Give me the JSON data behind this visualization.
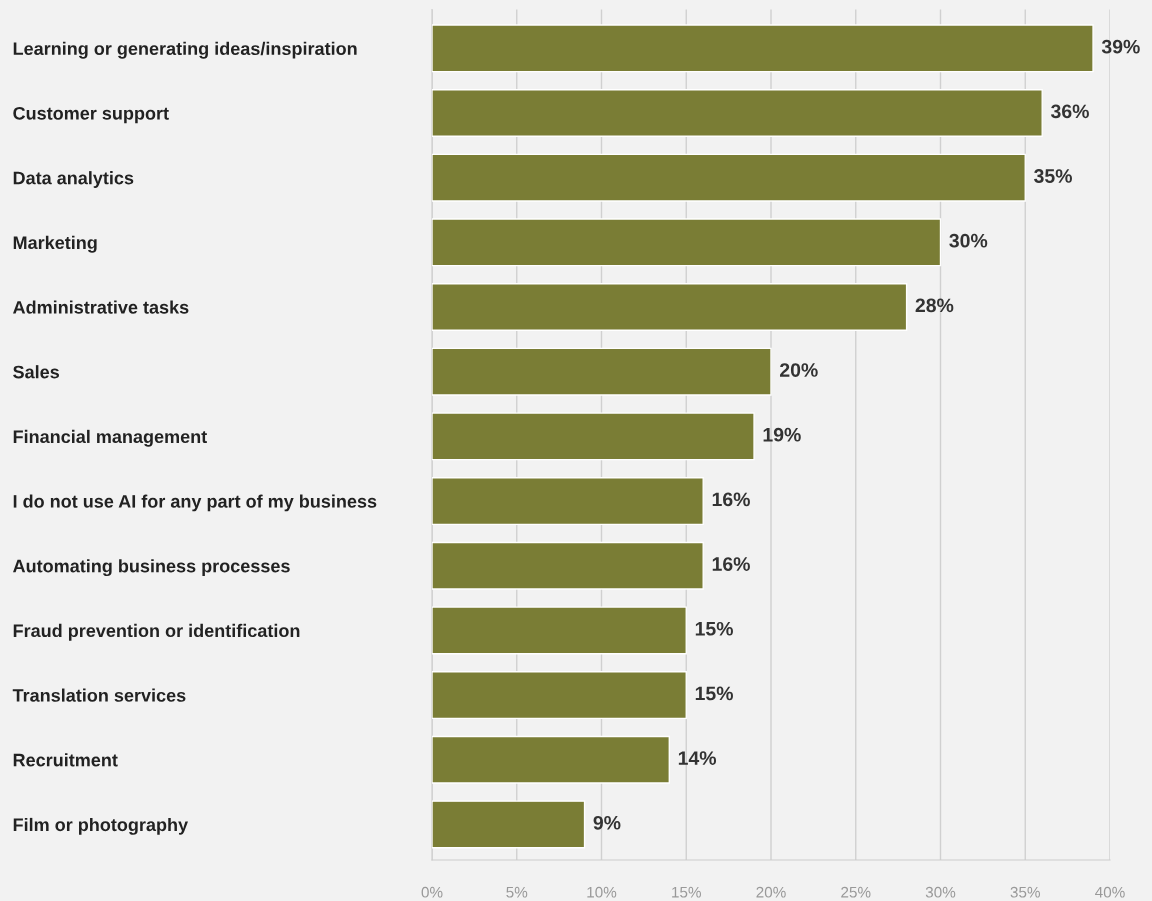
{
  "chart_data": {
    "type": "bar",
    "orientation": "horizontal",
    "categories": [
      "Learning or generating ideas/inspiration",
      "Customer support",
      "Data analytics",
      "Marketing",
      "Administrative tasks",
      "Sales",
      "Financial management",
      "I do not use AI for any part of my business",
      "Automating business processes",
      "Fraud prevention or identification",
      "Translation services",
      "Recruitment",
      "Film or photography"
    ],
    "values": [
      39,
      36,
      35,
      30,
      28,
      20,
      19,
      16,
      16,
      15,
      15,
      14,
      9
    ],
    "value_labels": [
      "39%",
      "36%",
      "35%",
      "30%",
      "28%",
      "20%",
      "19%",
      "16%",
      "16%",
      "15%",
      "15%",
      "14%",
      "9%"
    ],
    "color": "#7a7d35",
    "xlim": [
      0,
      40
    ],
    "xticks": [
      {
        "value": 0,
        "label": "0%"
      },
      {
        "value": 5,
        "label": "5%"
      },
      {
        "value": 10,
        "label": "10%"
      },
      {
        "value": 15,
        "label": "15%"
      },
      {
        "value": 20,
        "label": "20%"
      },
      {
        "value": 25,
        "label": "25%"
      },
      {
        "value": 30,
        "label": "30%"
      },
      {
        "value": 35,
        "label": "35%"
      },
      {
        "value": 40,
        "label": "40%"
      }
    ],
    "grid": "x"
  }
}
